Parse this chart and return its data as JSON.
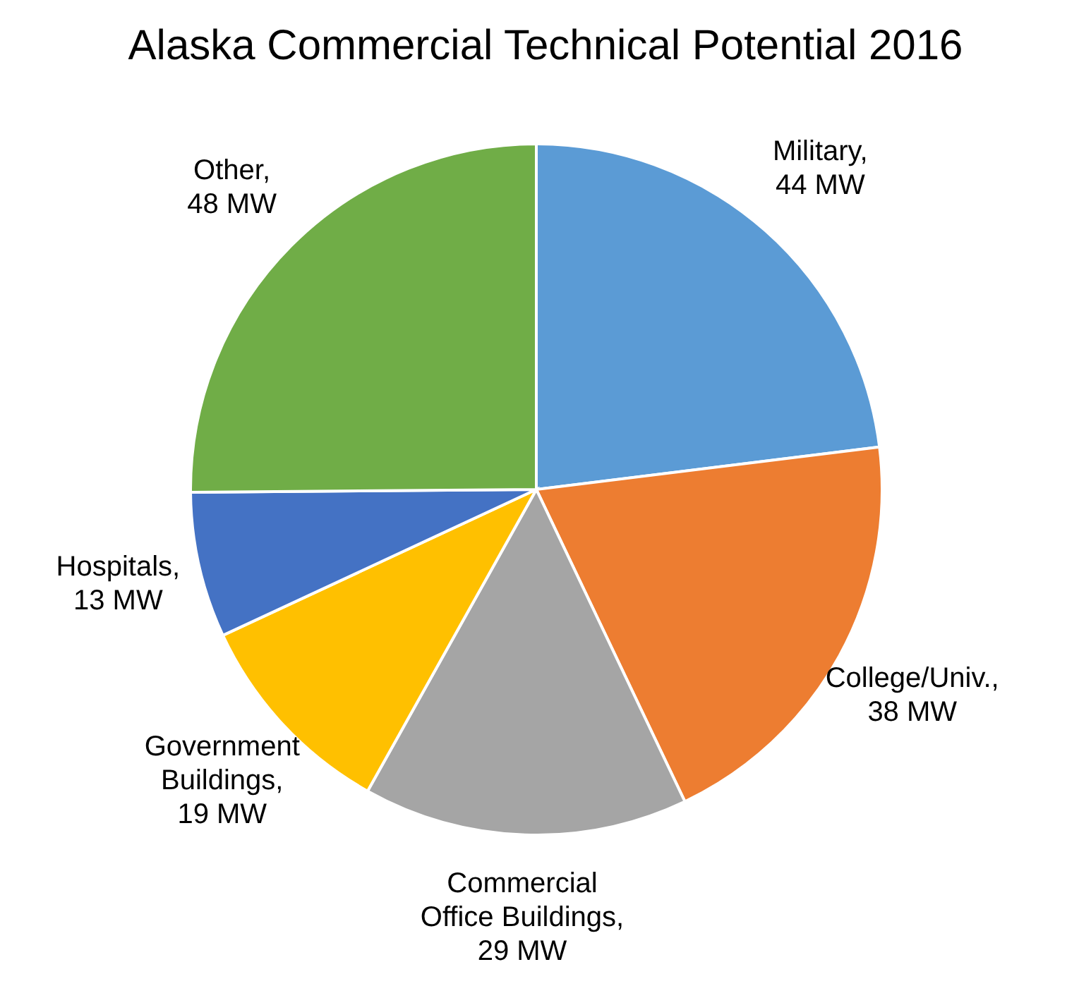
{
  "chart_data": {
    "type": "pie",
    "title": "Alaska Commercial Technical Potential 2016",
    "categories": [
      "Military",
      "College/Univ.",
      "Commercial Office Buildings",
      "Government Buildings",
      "Hospitals",
      "Other"
    ],
    "values": [
      44,
      38,
      29,
      19,
      13,
      48
    ],
    "colors": [
      "#5b9bd5",
      "#ed7d31",
      "#a5a5a5",
      "#ffc000",
      "#4472c4",
      "#70ad47"
    ],
    "value_labels": [
      ", 44 MW",
      ", 38 MW",
      ", 29 MW",
      ", 19 MW",
      ", 13 MW",
      ", 48 MW"
    ]
  }
}
